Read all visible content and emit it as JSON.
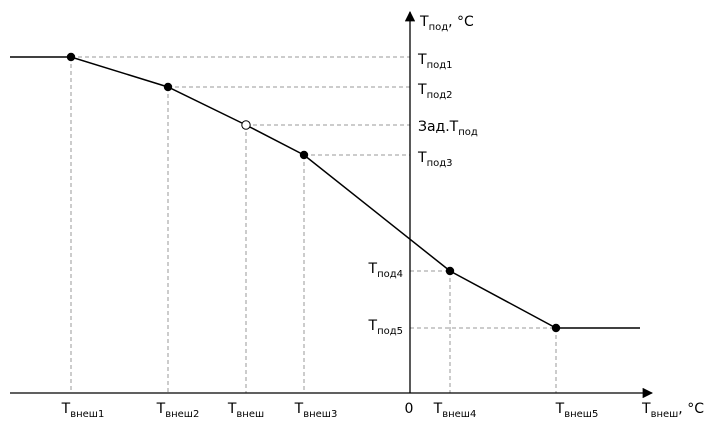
{
  "axes": {
    "y_main": "T",
    "y_sub": "под",
    "y_unit": ", °C",
    "x_main": "T",
    "x_sub": "внеш",
    "x_unit": ", °C",
    "origin": "0"
  },
  "y_labels": [
    {
      "main": "T",
      "sub": "под1"
    },
    {
      "main": "T",
      "sub": "под2"
    },
    {
      "main": "Зад.T",
      "sub": "под"
    },
    {
      "main": "T",
      "sub": "под3"
    },
    {
      "main": "T",
      "sub": "под4"
    },
    {
      "main": "T",
      "sub": "под5"
    }
  ],
  "x_labels": [
    {
      "main": "T",
      "sub": "внеш1"
    },
    {
      "main": "T",
      "sub": "внеш2"
    },
    {
      "main": "T",
      "sub": "внеш"
    },
    {
      "main": "T",
      "sub": "внеш3"
    },
    {
      "main": "T",
      "sub": "внеш4"
    },
    {
      "main": "T",
      "sub": "внеш5"
    }
  ],
  "colors": {
    "line": "#000000",
    "guide": "#9a9a9a",
    "open_point": "#ffffff"
  }
}
